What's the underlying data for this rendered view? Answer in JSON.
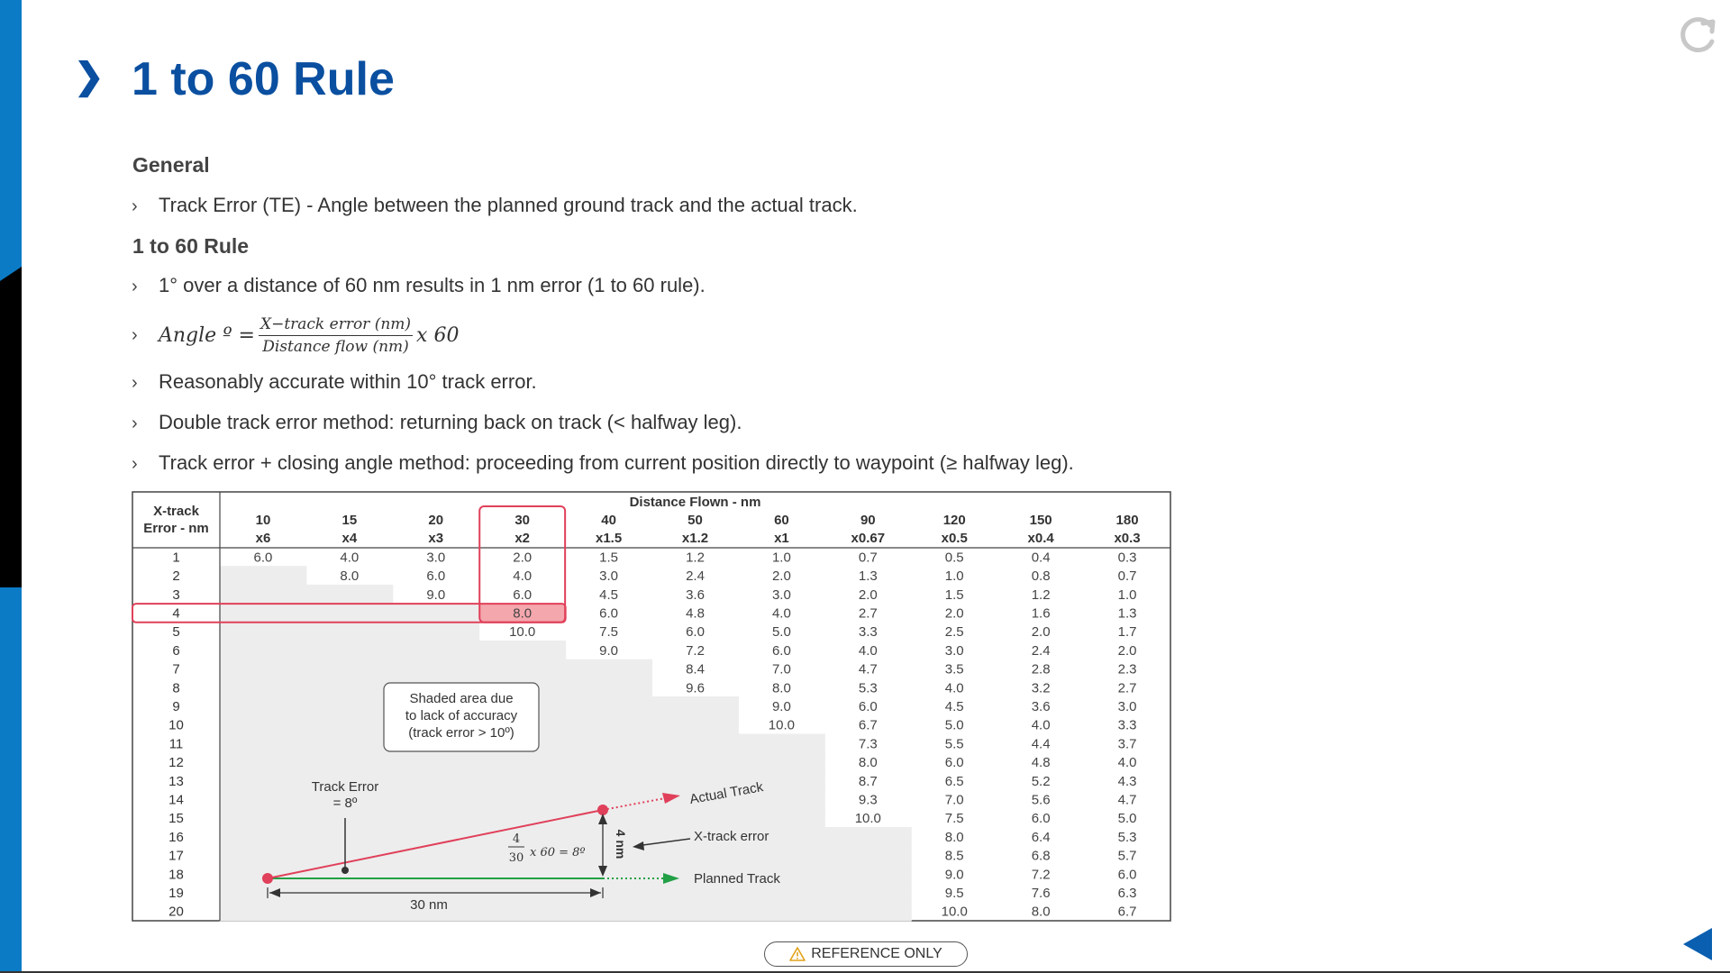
{
  "page": {
    "title_chevron": "❯",
    "title": "1 to 60 Rule",
    "heading_general": "General",
    "bullet_marker": "›",
    "bullet_te": "Track Error (TE) - Angle between the planned ground track and the actual track.",
    "heading_rule": "1 to 60 Rule",
    "bullet_1deg": "1° over a distance of 60 nm results in 1 nm error (1 to 60 rule).",
    "formula": {
      "lhs": "Angle º =",
      "numerator": "X−track error (nm)",
      "denominator": "Distance flow (nm)",
      "multiplier": "x 60"
    },
    "bullet_accurate": "Reasonably accurate within 10° track error.",
    "bullet_double": "Double track error method: returning back on track (< halfway leg).",
    "bullet_closing": "Track error + closing angle method: proceeding from current position directly to waypoint (≥ halfway leg).",
    "reference_only": "REFERENCE ONLY",
    "reference_icon": "warning-icon",
    "reload_icon": "reload-icon",
    "back_icon": "back-arrow-icon",
    "colors": {
      "brand_blue": "#0a4fa0",
      "side_blue": "#0b7bc6",
      "highlight_red": "#e0405a",
      "highlight_fill": "#f4a7ad",
      "shade": "#ededed",
      "planned_green": "#22a046"
    }
  },
  "table": {
    "row_header_line1": "X-track",
    "row_header_line2": "Error - nm",
    "group_header": "Distance Flown - nm",
    "columns": [
      {
        "dist": "10",
        "mult": "x6"
      },
      {
        "dist": "15",
        "mult": "x4"
      },
      {
        "dist": "20",
        "mult": "x3"
      },
      {
        "dist": "30",
        "mult": "x2"
      },
      {
        "dist": "40",
        "mult": "x1.5"
      },
      {
        "dist": "50",
        "mult": "x1.2"
      },
      {
        "dist": "60",
        "mult": "x1"
      },
      {
        "dist": "90",
        "mult": "x0.67"
      },
      {
        "dist": "120",
        "mult": "x0.5"
      },
      {
        "dist": "150",
        "mult": "x0.4"
      },
      {
        "dist": "180",
        "mult": "x0.3"
      }
    ],
    "rows": [
      {
        "err": "1",
        "vals": [
          "6.0",
          "4.0",
          "3.0",
          "2.0",
          "1.5",
          "1.2",
          "1.0",
          "0.7",
          "0.5",
          "0.4",
          "0.3"
        ]
      },
      {
        "err": "2",
        "vals": [
          "",
          "8.0",
          "6.0",
          "4.0",
          "3.0",
          "2.4",
          "2.0",
          "1.3",
          "1.0",
          "0.8",
          "0.7"
        ]
      },
      {
        "err": "3",
        "vals": [
          "",
          "",
          "9.0",
          "6.0",
          "4.5",
          "3.6",
          "3.0",
          "2.0",
          "1.5",
          "1.2",
          "1.0"
        ]
      },
      {
        "err": "4",
        "vals": [
          "",
          "",
          "",
          "8.0",
          "6.0",
          "4.8",
          "4.0",
          "2.7",
          "2.0",
          "1.6",
          "1.3"
        ]
      },
      {
        "err": "5",
        "vals": [
          "",
          "",
          "",
          "10.0",
          "7.5",
          "6.0",
          "5.0",
          "3.3",
          "2.5",
          "2.0",
          "1.7"
        ]
      },
      {
        "err": "6",
        "vals": [
          "",
          "",
          "",
          "",
          "9.0",
          "7.2",
          "6.0",
          "4.0",
          "3.0",
          "2.4",
          "2.0"
        ]
      },
      {
        "err": "7",
        "vals": [
          "",
          "",
          "",
          "",
          "",
          "8.4",
          "7.0",
          "4.7",
          "3.5",
          "2.8",
          "2.3"
        ]
      },
      {
        "err": "8",
        "vals": [
          "",
          "",
          "",
          "",
          "",
          "9.6",
          "8.0",
          "5.3",
          "4.0",
          "3.2",
          "2.7"
        ]
      },
      {
        "err": "9",
        "vals": [
          "",
          "",
          "",
          "",
          "",
          "",
          "9.0",
          "6.0",
          "4.5",
          "3.6",
          "3.0"
        ]
      },
      {
        "err": "10",
        "vals": [
          "",
          "",
          "",
          "",
          "",
          "",
          "10.0",
          "6.7",
          "5.0",
          "4.0",
          "3.3"
        ]
      },
      {
        "err": "11",
        "vals": [
          "",
          "",
          "",
          "",
          "",
          "",
          "",
          "7.3",
          "5.5",
          "4.4",
          "3.7"
        ]
      },
      {
        "err": "12",
        "vals": [
          "",
          "",
          "",
          "",
          "",
          "",
          "",
          "8.0",
          "6.0",
          "4.8",
          "4.0"
        ]
      },
      {
        "err": "13",
        "vals": [
          "",
          "",
          "",
          "",
          "",
          "",
          "",
          "8.7",
          "6.5",
          "5.2",
          "4.3"
        ]
      },
      {
        "err": "14",
        "vals": [
          "",
          "",
          "",
          "",
          "",
          "",
          "",
          "9.3",
          "7.0",
          "5.6",
          "4.7"
        ]
      },
      {
        "err": "15",
        "vals": [
          "",
          "",
          "",
          "",
          "",
          "",
          "",
          "10.0",
          "7.5",
          "6.0",
          "5.0"
        ]
      },
      {
        "err": "16",
        "vals": [
          "",
          "",
          "",
          "",
          "",
          "",
          "",
          "",
          "8.0",
          "6.4",
          "5.3"
        ]
      },
      {
        "err": "17",
        "vals": [
          "",
          "",
          "",
          "",
          "",
          "",
          "",
          "",
          "8.5",
          "6.8",
          "5.7"
        ]
      },
      {
        "err": "18",
        "vals": [
          "",
          "",
          "",
          "",
          "",
          "",
          "",
          "",
          "9.0",
          "7.2",
          "6.0"
        ]
      },
      {
        "err": "19",
        "vals": [
          "",
          "",
          "",
          "",
          "",
          "",
          "",
          "",
          "9.5",
          "7.6",
          "6.3"
        ]
      },
      {
        "err": "20",
        "vals": [
          "",
          "",
          "",
          "",
          "",
          "",
          "",
          "",
          "10.0",
          "8.0",
          "6.7"
        ]
      }
    ],
    "highlight_row_err": "4",
    "highlight_col_dist": "30"
  },
  "diagram": {
    "shaded_note": [
      "Shaded area due",
      "to lack of accuracy",
      "(track error > 10º)"
    ],
    "track_error_label": [
      "Track Error",
      "= 8º"
    ],
    "calc_num": "4",
    "calc_den": "30",
    "calc_rest": "x 60 = 8º",
    "xtrack_dist": "4 nm",
    "actual_track": "Actual Track",
    "xtrack_error": "X-track error",
    "planned_track": "Planned Track",
    "distance": "30 nm"
  }
}
